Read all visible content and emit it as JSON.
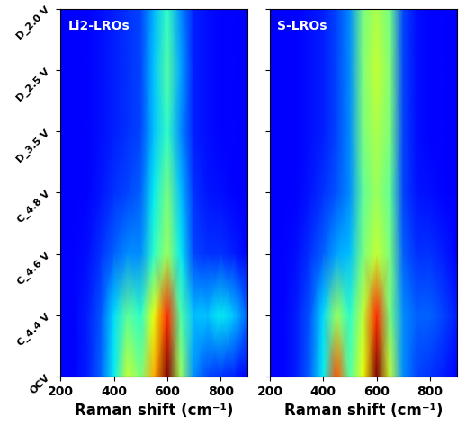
{
  "chart_data": [
    {
      "type": "heatmap",
      "title": "Li2-LROs",
      "xlabel": "Raman shift (cm⁻¹)",
      "x": [
        200,
        250,
        300,
        350,
        400,
        450,
        500,
        550,
        600,
        650,
        700,
        750,
        800,
        850,
        900
      ],
      "categories": [
        "OCV",
        "C_4.4 V",
        "C_4.6 V",
        "C_4.8 V",
        "D_3.5 V",
        "D_2.5 V",
        "D_2.0 V"
      ],
      "cells": [
        [
          0.05,
          0.05,
          0.08,
          0.15,
          0.3,
          0.55,
          0.45,
          0.7,
          1.0,
          0.5,
          0.2,
          0.12,
          0.1,
          0.08,
          0.05
        ],
        [
          0.05,
          0.05,
          0.08,
          0.14,
          0.28,
          0.42,
          0.35,
          0.6,
          0.85,
          0.4,
          0.25,
          0.25,
          0.3,
          0.26,
          0.15
        ],
        [
          0.05,
          0.05,
          0.06,
          0.1,
          0.15,
          0.2,
          0.2,
          0.35,
          0.5,
          0.3,
          0.12,
          0.1,
          0.1,
          0.08,
          0.05
        ],
        [
          0.04,
          0.04,
          0.05,
          0.07,
          0.1,
          0.12,
          0.15,
          0.3,
          0.45,
          0.25,
          0.1,
          0.07,
          0.06,
          0.05,
          0.04
        ],
        [
          0.04,
          0.04,
          0.05,
          0.06,
          0.08,
          0.1,
          0.12,
          0.25,
          0.36,
          0.2,
          0.08,
          0.06,
          0.05,
          0.05,
          0.04
        ],
        [
          0.04,
          0.04,
          0.05,
          0.06,
          0.08,
          0.1,
          0.12,
          0.26,
          0.4,
          0.22,
          0.08,
          0.06,
          0.05,
          0.05,
          0.04
        ],
        [
          0.04,
          0.04,
          0.05,
          0.06,
          0.08,
          0.1,
          0.12,
          0.24,
          0.36,
          0.2,
          0.08,
          0.06,
          0.05,
          0.05,
          0.04
        ]
      ],
      "xlim": [
        200,
        900
      ],
      "xticks": [
        200,
        400,
        600,
        800
      ]
    },
    {
      "type": "heatmap",
      "title": "S-LROs",
      "xlabel": "Raman shift (cm⁻¹)",
      "x": [
        200,
        250,
        300,
        350,
        400,
        450,
        500,
        550,
        600,
        650,
        700,
        750,
        800,
        850,
        900
      ],
      "categories": [
        "OCV",
        "C_4.4 V",
        "C_4.6 V",
        "C_4.8 V",
        "D_3.5 V",
        "D_2.5 V",
        "D_2.0 V"
      ],
      "cells": [
        [
          0.05,
          0.05,
          0.08,
          0.15,
          0.3,
          0.8,
          0.4,
          0.6,
          1.0,
          0.55,
          0.2,
          0.12,
          0.1,
          0.08,
          0.05
        ],
        [
          0.05,
          0.05,
          0.08,
          0.14,
          0.28,
          0.5,
          0.35,
          0.55,
          0.85,
          0.45,
          0.2,
          0.15,
          0.15,
          0.12,
          0.08
        ],
        [
          0.05,
          0.05,
          0.06,
          0.1,
          0.15,
          0.22,
          0.25,
          0.45,
          0.55,
          0.45,
          0.15,
          0.1,
          0.1,
          0.08,
          0.05
        ],
        [
          0.04,
          0.04,
          0.05,
          0.07,
          0.1,
          0.14,
          0.2,
          0.42,
          0.5,
          0.42,
          0.12,
          0.07,
          0.06,
          0.05,
          0.04
        ],
        [
          0.04,
          0.04,
          0.05,
          0.06,
          0.08,
          0.12,
          0.2,
          0.45,
          0.52,
          0.45,
          0.12,
          0.06,
          0.05,
          0.05,
          0.04
        ],
        [
          0.04,
          0.04,
          0.05,
          0.06,
          0.08,
          0.12,
          0.2,
          0.46,
          0.55,
          0.46,
          0.12,
          0.06,
          0.05,
          0.05,
          0.04
        ],
        [
          0.04,
          0.04,
          0.05,
          0.06,
          0.08,
          0.12,
          0.2,
          0.45,
          0.52,
          0.44,
          0.12,
          0.06,
          0.05,
          0.05,
          0.04
        ]
      ],
      "xlim": [
        200,
        900
      ],
      "xticks": [
        200,
        400,
        600,
        800
      ],
      "tick_labels": "x"
    }
  ]
}
